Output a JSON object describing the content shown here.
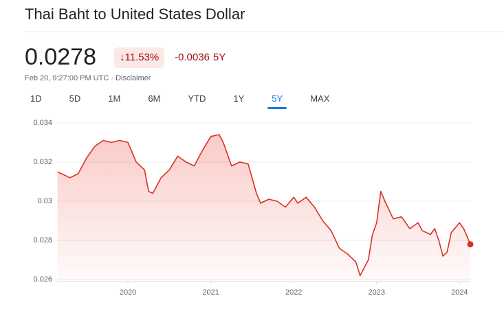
{
  "header": {
    "title": "Thai Baht to United States Dollar"
  },
  "quote": {
    "price": "0.0278",
    "change_pct": "11.53%",
    "change": "-0.0036",
    "period": "5Y",
    "timestamp": "Feb 20, 9:27:00 PM UTC",
    "separator": "·",
    "disclaimer": "Disclaimer"
  },
  "tabs": [
    "1D",
    "5D",
    "1M",
    "6M",
    "YTD",
    "1Y",
    "5Y",
    "MAX"
  ],
  "active_tab": "5Y",
  "chart_data": {
    "type": "line",
    "color": "#d93025",
    "grid": true,
    "x": [
      2019.15,
      2019.3,
      2019.4,
      2019.5,
      2019.6,
      2019.7,
      2019.8,
      2019.9,
      2020.0,
      2020.1,
      2020.2,
      2020.25,
      2020.3,
      2020.4,
      2020.5,
      2020.6,
      2020.7,
      2020.8,
      2020.9,
      2021.0,
      2021.1,
      2021.15,
      2021.25,
      2021.35,
      2021.45,
      2021.55,
      2021.6,
      2021.7,
      2021.8,
      2021.9,
      2022.0,
      2022.05,
      2022.15,
      2022.25,
      2022.35,
      2022.45,
      2022.55,
      2022.65,
      2022.75,
      2022.8,
      2022.9,
      2022.95,
      2023.0,
      2023.05,
      2023.1,
      2023.2,
      2023.3,
      2023.4,
      2023.5,
      2023.55,
      2023.65,
      2023.7,
      2023.75,
      2023.8,
      2023.85,
      2023.9,
      2024.0,
      2024.05,
      2024.1,
      2024.13
    ],
    "values": [
      0.0315,
      0.0312,
      0.0314,
      0.0322,
      0.0328,
      0.0331,
      0.033,
      0.0331,
      0.033,
      0.032,
      0.0316,
      0.0305,
      0.0304,
      0.0312,
      0.0316,
      0.0323,
      0.032,
      0.0318,
      0.0326,
      0.0333,
      0.0334,
      0.033,
      0.0318,
      0.032,
      0.0319,
      0.0304,
      0.0299,
      0.0301,
      0.03,
      0.0297,
      0.0302,
      0.0299,
      0.0302,
      0.0297,
      0.029,
      0.0285,
      0.0276,
      0.0273,
      0.0269,
      0.0262,
      0.027,
      0.0283,
      0.0289,
      0.0305,
      0.03,
      0.0291,
      0.0292,
      0.0286,
      0.0289,
      0.0285,
      0.0283,
      0.0286,
      0.028,
      0.0272,
      0.0274,
      0.0284,
      0.0289,
      0.0286,
      0.0281,
      0.0278
    ],
    "xlim": [
      2019.145,
      2024.13
    ],
    "xticks": [
      2020,
      2021,
      2022,
      2023,
      2024
    ],
    "ylim": [
      0.0259,
      0.0341
    ],
    "yticks": [
      0.026,
      0.028,
      0.03,
      0.032,
      0.034
    ]
  }
}
